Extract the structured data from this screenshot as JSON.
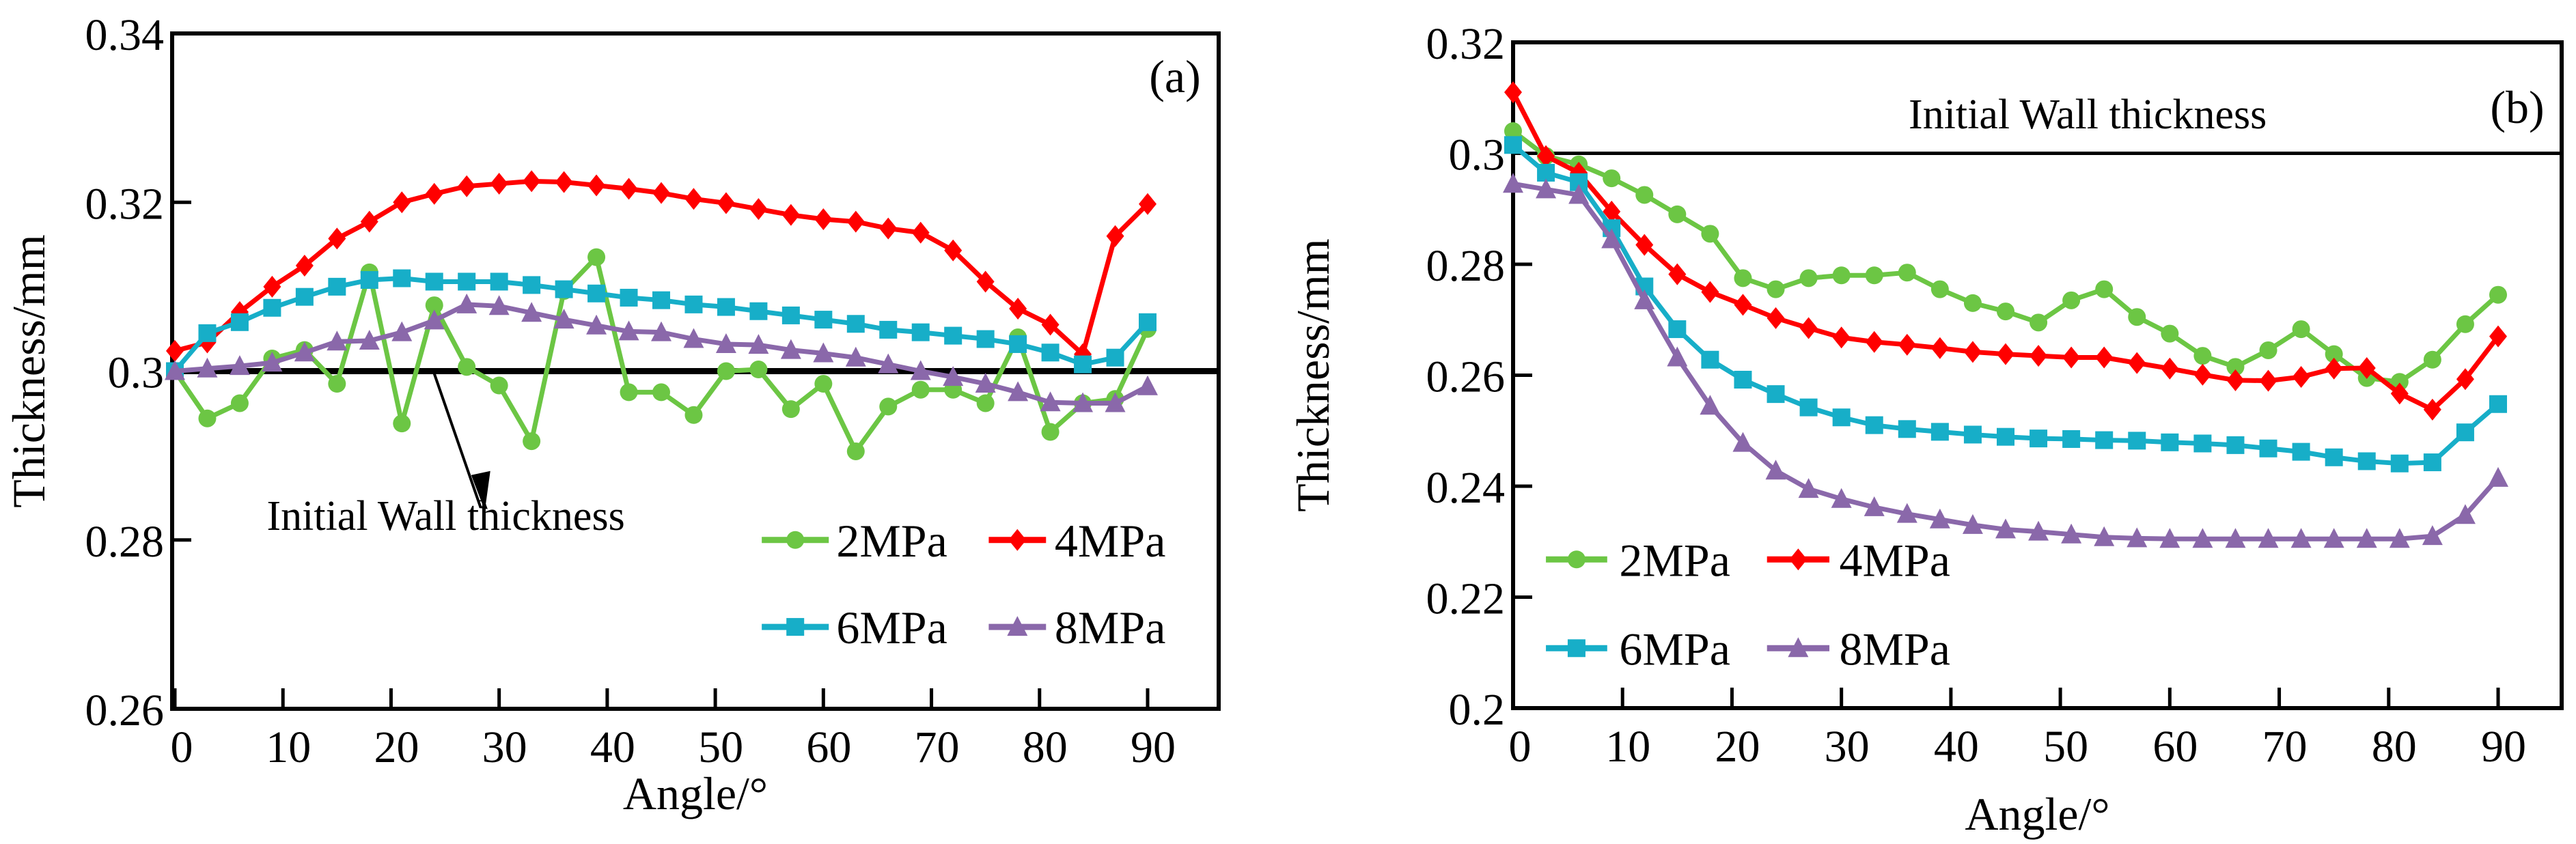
{
  "colors": {
    "2MPa": "#6cc644",
    "4MPa": "#ff0000",
    "6MPa": "#17aec8",
    "8MPa": "#8a68aa",
    "reference": "#000000"
  },
  "chart_data": [
    {
      "type": "line",
      "panel_label": "(a)",
      "xlabel": "Angle/°",
      "ylabel": "Thickness/mm",
      "xlim": [
        0,
        96
      ],
      "ylim": [
        0.26,
        0.34
      ],
      "xticks": [
        "0",
        "10",
        "20",
        "30",
        "40",
        "50",
        "60",
        "70",
        "80",
        "90"
      ],
      "yticks": [
        "0.26",
        "0.28",
        "0.3",
        "0.32",
        "0.34"
      ],
      "reference_line": {
        "y": 0.3,
        "label": "Initial Wall thickness"
      },
      "legend_placement": "lower-right",
      "x": [
        0,
        3,
        6,
        9,
        12,
        15,
        18,
        21,
        24,
        27,
        30,
        33,
        36,
        39,
        42,
        45,
        48,
        51,
        54,
        57,
        60,
        63,
        66,
        69,
        72,
        75,
        78,
        81,
        84,
        87,
        90
      ],
      "series": [
        {
          "name": "2MPa",
          "marker": "circle",
          "values": [
            0.3,
            0.2944,
            0.2962,
            0.3015,
            0.3025,
            0.2985,
            0.3117,
            0.2938,
            0.3078,
            0.3005,
            0.2983,
            0.2917,
            0.3095,
            0.3135,
            0.2975,
            0.2975,
            0.2948,
            0.3,
            0.3002,
            0.2955,
            0.2985,
            0.2905,
            0.2958,
            0.2978,
            0.2978,
            0.2962,
            0.304,
            0.2928,
            0.2962,
            0.2967,
            0.305
          ]
        },
        {
          "name": "4MPa",
          "marker": "diamond",
          "values": [
            0.3024,
            0.3034,
            0.307,
            0.31,
            0.3125,
            0.3157,
            0.3177,
            0.32,
            0.321,
            0.3219,
            0.3222,
            0.3225,
            0.3224,
            0.322,
            0.3216,
            0.3211,
            0.3204,
            0.3199,
            0.3192,
            0.3185,
            0.318,
            0.3177,
            0.3169,
            0.3164,
            0.3143,
            0.3106,
            0.3074,
            0.3055,
            0.302,
            0.316,
            0.3198
          ]
        },
        {
          "name": "6MPa",
          "marker": "square",
          "values": [
            0.3,
            0.3045,
            0.3058,
            0.3075,
            0.3088,
            0.31,
            0.3108,
            0.311,
            0.3106,
            0.3106,
            0.3106,
            0.3102,
            0.3097,
            0.3092,
            0.3087,
            0.3084,
            0.3079,
            0.3076,
            0.3071,
            0.3066,
            0.3061,
            0.3056,
            0.3049,
            0.3046,
            0.3042,
            0.3038,
            0.3032,
            0.3022,
            0.3008,
            0.3016,
            0.3058
          ]
        },
        {
          "name": "8MPa",
          "marker": "triangle",
          "values": [
            0.3,
            0.3003,
            0.3006,
            0.301,
            0.3022,
            0.3035,
            0.3036,
            0.3046,
            0.306,
            0.3079,
            0.3077,
            0.3069,
            0.3061,
            0.3054,
            0.3047,
            0.3046,
            0.3038,
            0.3032,
            0.3031,
            0.3025,
            0.3021,
            0.3016,
            0.3008,
            0.3,
            0.2993,
            0.2985,
            0.2975,
            0.2963,
            0.2962,
            0.2962,
            0.2982
          ]
        }
      ]
    },
    {
      "type": "line",
      "panel_label": "(b)",
      "xlabel": "Angle/°",
      "ylabel": "Thickness/mm",
      "xlim": [
        0,
        96
      ],
      "ylim": [
        0.2,
        0.32
      ],
      "xticks": [
        "0",
        "10",
        "20",
        "30",
        "40",
        "50",
        "60",
        "70",
        "80",
        "90"
      ],
      "yticks": [
        "0.2",
        "0.22",
        "0.24",
        "0.26",
        "0.28",
        "0.3",
        "0.32"
      ],
      "reference_line": {
        "y": 0.3,
        "label": "Initial Wall thickness"
      },
      "legend_placement": "lower-left",
      "x": [
        0,
        3,
        6,
        9,
        12,
        15,
        18,
        21,
        24,
        27,
        30,
        33,
        36,
        39,
        42,
        45,
        48,
        51,
        54,
        57,
        60,
        63,
        66,
        69,
        72,
        75,
        78,
        81,
        84,
        87,
        90
      ],
      "series": [
        {
          "name": "2MPa",
          "marker": "circle",
          "values": [
            0.304,
            0.2995,
            0.298,
            0.2955,
            0.2925,
            0.289,
            0.2855,
            0.2775,
            0.2755,
            0.2775,
            0.278,
            0.278,
            0.2785,
            0.2755,
            0.273,
            0.2715,
            0.2695,
            0.2735,
            0.2755,
            0.2705,
            0.2675,
            0.2635,
            0.2615,
            0.2645,
            0.2683,
            0.2638,
            0.2595,
            0.2588,
            0.2628,
            0.2692,
            0.2745
          ]
        },
        {
          "name": "4MPa",
          "marker": "diamond",
          "values": [
            0.311,
            0.2995,
            0.2965,
            0.2895,
            0.2835,
            0.2782,
            0.275,
            0.2727,
            0.2703,
            0.2685,
            0.2668,
            0.266,
            0.2655,
            0.2649,
            0.2642,
            0.2638,
            0.2635,
            0.2632,
            0.2632,
            0.2622,
            0.2612,
            0.2601,
            0.2591,
            0.259,
            0.2597,
            0.2612,
            0.2613,
            0.2567,
            0.2538,
            0.2593,
            0.267
          ]
        },
        {
          "name": "6MPa",
          "marker": "square",
          "values": [
            0.3015,
            0.2965,
            0.2948,
            0.2865,
            0.276,
            0.2683,
            0.2628,
            0.2592,
            0.2566,
            0.2542,
            0.2524,
            0.251,
            0.2503,
            0.2498,
            0.2493,
            0.2489,
            0.2486,
            0.2485,
            0.2483,
            0.2482,
            0.2479,
            0.2477,
            0.2474,
            0.2468,
            0.2462,
            0.2452,
            0.2445,
            0.2441,
            0.2443,
            0.2497,
            0.2548
          ]
        },
        {
          "name": "8MPa",
          "marker": "triangle",
          "values": [
            0.2945,
            0.2935,
            0.2925,
            0.2845,
            0.2735,
            0.2632,
            0.2545,
            0.2478,
            0.2428,
            0.2395,
            0.2377,
            0.2362,
            0.235,
            0.234,
            0.233,
            0.2322,
            0.2318,
            0.2313,
            0.2308,
            0.2306,
            0.2305,
            0.2305,
            0.2305,
            0.2305,
            0.2305,
            0.2305,
            0.2305,
            0.2305,
            0.231,
            0.2348,
            0.2415
          ]
        }
      ]
    }
  ]
}
